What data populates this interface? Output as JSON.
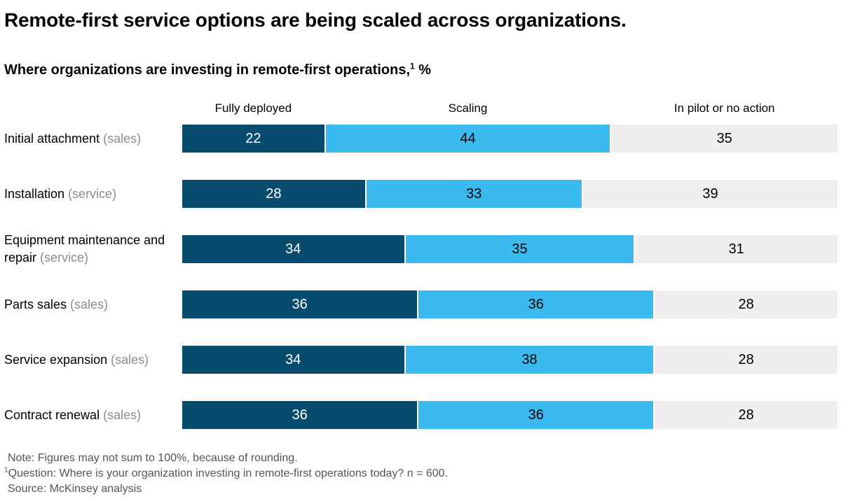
{
  "title": "Remote-first service options are being scaled across organizations.",
  "subtitle": {
    "text": "Where organizations are investing in remote-first operations,",
    "superscript": "1",
    "suffix": " %"
  },
  "colors": {
    "fully_deployed": "#074B6E",
    "scaling": "#3ABAEE",
    "in_pilot_or_no_action": "#EFEFEF",
    "row_sublabel": "#8C8C8C",
    "footnote_text": "#545454",
    "background": "#FFFFFF"
  },
  "chart_data": {
    "type": "bar",
    "orientation": "horizontal-stacked",
    "title": "Remote-first service options are being scaled across organizations.",
    "subtitle": "Where organizations are investing in remote-first operations,¹ %",
    "xlabel": "",
    "ylabel": "",
    "xlim": [
      0,
      100
    ],
    "grid": false,
    "legend_position": "top",
    "categories": [
      "Initial attachment (sales)",
      "Installation (service)",
      "Equipment maintenance and repair (service)",
      "Parts sales (sales)",
      "Service expansion (sales)",
      "Contract renewal (sales)"
    ],
    "series": [
      {
        "name": "Fully deployed",
        "color": "#074B6E",
        "value_color": "#FFFFFF",
        "values": [
          22,
          28,
          34,
          36,
          34,
          36
        ]
      },
      {
        "name": "Scaling",
        "color": "#3ABAEE",
        "value_color": "#000000",
        "values": [
          44,
          33,
          35,
          36,
          38,
          36
        ]
      },
      {
        "name": "In pilot or no action",
        "color": "#EFEFEF",
        "value_color": "#000000",
        "values": [
          35,
          39,
          31,
          28,
          28,
          28
        ]
      }
    ]
  },
  "rows": [
    {
      "label": "Initial attachment",
      "sublabel": "(sales)"
    },
    {
      "label": "Installation",
      "sublabel": "(service)"
    },
    {
      "label": "Equipment maintenance and repair",
      "sublabel": "(service)"
    },
    {
      "label": "Parts sales",
      "sublabel": "(sales)"
    },
    {
      "label": "Service expansion",
      "sublabel": "(sales)"
    },
    {
      "label": "Contract renewal",
      "sublabel": "(sales)"
    }
  ],
  "notes": {
    "note": "Note: Figures may not sum to 100%, because of rounding.",
    "question_superscript": "1",
    "question": "Question: Where is your organization investing in remote-first operations today? n = 600.",
    "source": "Source: McKinsey analysis"
  }
}
